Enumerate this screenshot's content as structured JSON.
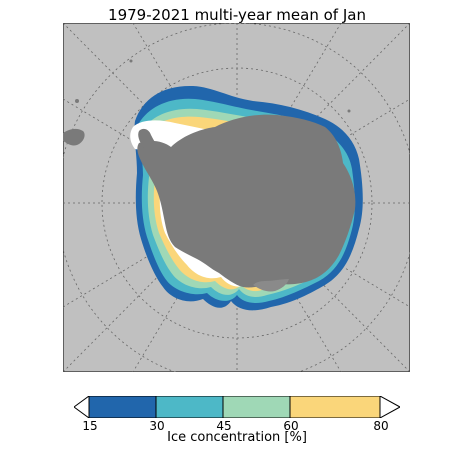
{
  "title": "1979-2021 multi-year mean of Jan",
  "colorbar": {
    "label": "Ice concentration [%]",
    "ticks": [
      "15",
      "30",
      "45",
      "60",
      "80"
    ],
    "bins": [
      {
        "from": 15,
        "to": 30,
        "color": "#2166ac"
      },
      {
        "from": 30,
        "to": 45,
        "color": "#4db8c7"
      },
      {
        "from": 45,
        "to": 60,
        "color": "#9fd8b6"
      },
      {
        "from": 60,
        "to": 80,
        "color": "#fad67a"
      }
    ],
    "extend_low_color": "#ffffff",
    "extend_high_color": "#ffffff"
  },
  "colors": {
    "ocean": "#c0c0c0",
    "land": "#7a7a7a",
    "high_ice": "#ffffff",
    "gridline": "#666666"
  },
  "map": {
    "projection": "south-polar-stereographic",
    "gridlines": true
  }
}
